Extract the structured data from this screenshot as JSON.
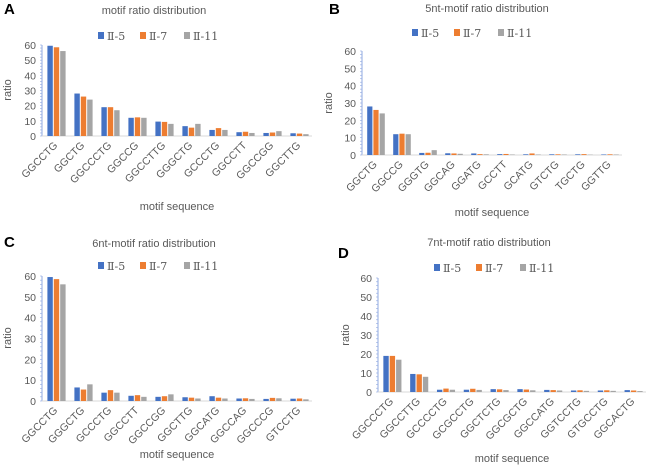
{
  "chart_data": [
    {
      "panel": "A",
      "type": "bar",
      "title": "motif ratio distribution",
      "xlabel": "motif sequence",
      "ylabel": "ratio",
      "ylim": [
        0,
        60
      ],
      "yticks": [
        0,
        10,
        20,
        30,
        40,
        50,
        60
      ],
      "legend_position": "top",
      "categories": [
        "GGCCTG",
        "GGCTG",
        "GGCCCTG",
        "GGCCG",
        "GGCCTTG",
        "GGGCTG",
        "GCCCTG",
        "GGCCTT",
        "GGCCGG",
        "GGCTTG"
      ],
      "series": [
        {
          "name": "Ⅱ-5",
          "color": "#4472C4",
          "values": [
            59.5,
            28,
            19,
            12,
            9.5,
            6.5,
            4,
            2.5,
            2,
            1.8
          ]
        },
        {
          "name": "Ⅱ-7",
          "color": "#ED7D31",
          "values": [
            58.5,
            26,
            19,
            12.3,
            9.3,
            5.5,
            5.2,
            2.8,
            2.3,
            1.6
          ]
        },
        {
          "name": "Ⅱ-11",
          "color": "#A5A5A5",
          "values": [
            56,
            24,
            17,
            12,
            8,
            8,
            4,
            2,
            3.2,
            1.2
          ]
        }
      ]
    },
    {
      "panel": "B",
      "type": "bar",
      "title": "5nt-motif ratio distribution",
      "xlabel": "motif sequence",
      "ylabel": "ratio",
      "ylim": [
        0,
        60
      ],
      "yticks": [
        0,
        10,
        20,
        30,
        40,
        50,
        60
      ],
      "legend_position": "top",
      "categories": [
        "GGCTG",
        "GGCCG",
        "GGGTG",
        "GGCAG",
        "GGATG",
        "GCCTT",
        "GCATG",
        "GTCTG",
        "TGCTG",
        "GGTTG"
      ],
      "series": [
        {
          "name": "Ⅱ-5",
          "color": "#4472C4",
          "values": [
            28,
            12,
            1.2,
            1,
            0.9,
            0.5,
            0.4,
            0.4,
            0.4,
            0.3
          ]
        },
        {
          "name": "Ⅱ-7",
          "color": "#ED7D31",
          "values": [
            26,
            12.3,
            1.3,
            0.9,
            0.5,
            0.6,
            0.9,
            0.4,
            0.5,
            0.4
          ]
        },
        {
          "name": "Ⅱ-11",
          "color": "#A5A5A5",
          "values": [
            24,
            12,
            2.8,
            0.7,
            0.4,
            0.3,
            0.3,
            0.3,
            0.2,
            0.3
          ]
        }
      ]
    },
    {
      "panel": "C",
      "type": "bar",
      "title": "6nt-motif ratio distribution",
      "xlabel": "motif sequence",
      "ylabel": "ratio",
      "ylim": [
        0,
        60
      ],
      "yticks": [
        0,
        10,
        20,
        30,
        40,
        50,
        60
      ],
      "legend_position": "top",
      "categories": [
        "GGCCTG",
        "GGGCTG",
        "GCCCTG",
        "GGCCTT",
        "GGCCGG",
        "GGCTTG",
        "GGCATG",
        "GGCCAG",
        "GGCCCG",
        "GTCCTG"
      ],
      "series": [
        {
          "name": "Ⅱ-5",
          "color": "#4472C4",
          "values": [
            59.5,
            6.5,
            4,
            2.5,
            2,
            1.8,
            2.3,
            1.2,
            1,
            1.1
          ]
        },
        {
          "name": "Ⅱ-7",
          "color": "#ED7D31",
          "values": [
            58.5,
            5.5,
            5.2,
            2.8,
            2.3,
            1.6,
            1.6,
            1.3,
            1.5,
            1.2
          ]
        },
        {
          "name": "Ⅱ-11",
          "color": "#A5A5A5",
          "values": [
            56,
            8,
            4,
            2,
            3.2,
            1.2,
            1.2,
            1,
            1.3,
            0.8
          ]
        }
      ]
    },
    {
      "panel": "D",
      "type": "bar",
      "title": "7nt-motif ratio distribution",
      "xlabel": "motif sequence",
      "ylabel": "ratio",
      "ylim": [
        0,
        60
      ],
      "yticks": [
        0,
        10,
        20,
        30,
        40,
        50,
        60
      ],
      "legend_position": "top",
      "categories": [
        "GGCCCTG",
        "GGCCTTG",
        "GCCCCTG",
        "GCGCCTG",
        "GGCTCTG",
        "GGCGCTG",
        "GGCCATG",
        "GGTCCTG",
        "GTGCCTG",
        "GGCACTG"
      ],
      "series": [
        {
          "name": "Ⅱ-5",
          "color": "#4472C4",
          "values": [
            19,
            9.5,
            1.2,
            1.2,
            1.5,
            1.5,
            1.1,
            0.8,
            0.8,
            1
          ]
        },
        {
          "name": "Ⅱ-7",
          "color": "#ED7D31",
          "values": [
            19,
            9.3,
            1.8,
            1.7,
            1.4,
            1.3,
            1,
            0.9,
            0.9,
            0.8
          ]
        },
        {
          "name": "Ⅱ-11",
          "color": "#A5A5A5",
          "values": [
            17,
            8,
            1.2,
            1.1,
            1,
            0.9,
            0.8,
            0.6,
            0.6,
            0.5
          ]
        }
      ]
    }
  ]
}
